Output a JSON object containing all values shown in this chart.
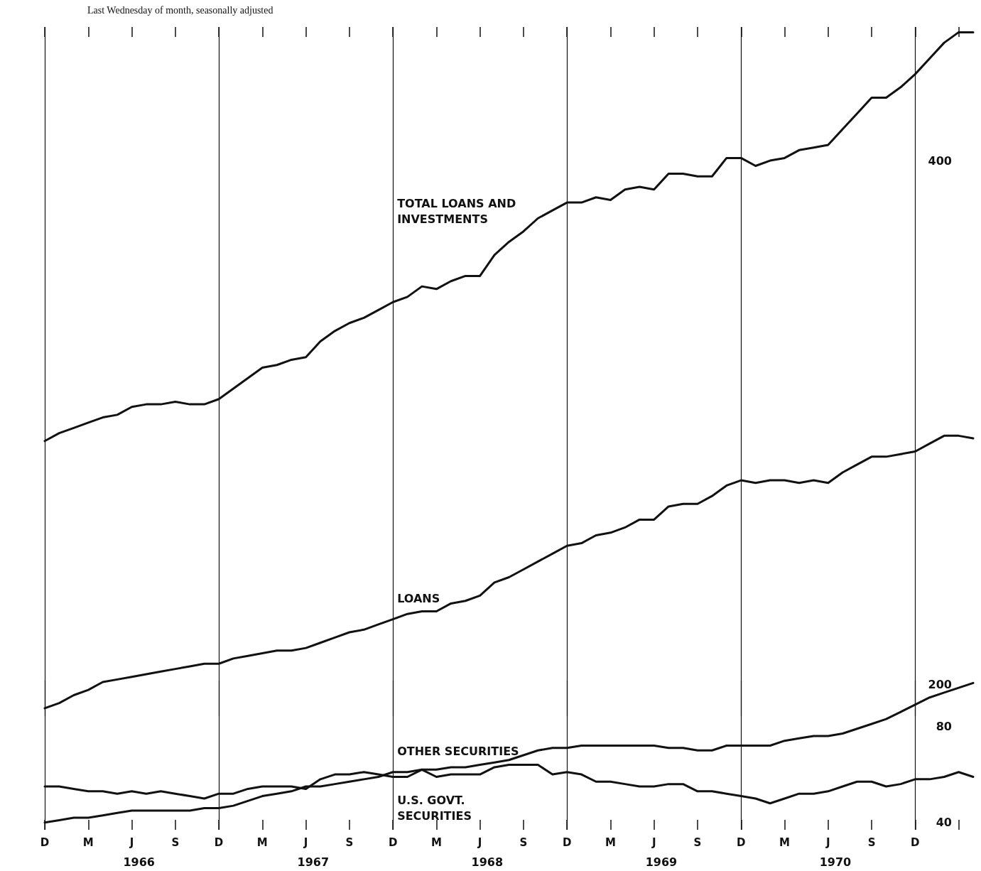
{
  "chart_data": [
    {
      "type": "line",
      "subtitle": "Last Wednesday of month, seasonally adjusted",
      "categories": [
        null,
        null,
        null,
        null,
        null,
        null,
        null,
        null,
        null,
        null,
        null,
        null,
        null,
        null,
        null,
        null,
        null,
        null,
        null,
        null,
        null,
        null,
        null,
        null,
        null,
        null,
        null,
        null,
        null,
        null,
        null,
        null,
        null,
        null,
        null,
        null,
        null,
        null,
        null,
        null,
        null,
        null,
        null,
        null,
        null,
        null,
        null,
        null,
        null,
        null,
        null,
        null,
        null,
        null,
        null,
        null,
        null,
        null,
        null,
        null,
        null,
        null,
        null,
        null,
        null
      ],
      "series": [
        {
          "name": "TOTAL LOANS AND INVESTMENTS",
          "color": "#111111",
          "values": [
            293,
            296,
            298,
            300,
            302,
            303,
            306,
            307,
            307,
            308,
            307,
            307,
            309,
            313,
            317,
            321,
            322,
            324,
            325,
            331,
            335,
            338,
            340,
            343,
            346,
            348,
            352,
            351,
            354,
            356,
            356,
            364,
            369,
            373,
            378,
            381,
            384,
            384,
            386,
            385,
            389,
            390,
            389,
            395,
            395,
            394,
            394,
            401,
            401,
            398,
            400,
            401,
            404,
            405,
            406,
            412,
            418,
            424,
            424,
            428,
            433,
            439,
            445,
            449,
            449
          ]
        },
        {
          "name": "LOANS",
          "color": "#111111",
          "values": [
            191,
            193,
            196,
            198,
            201,
            202,
            203,
            204,
            205,
            206,
            207,
            208,
            208,
            210,
            211,
            212,
            213,
            213,
            214,
            216,
            218,
            220,
            221,
            223,
            225,
            227,
            228,
            228,
            231,
            232,
            234,
            239,
            241,
            244,
            247,
            250,
            253,
            254,
            257,
            258,
            260,
            263,
            263,
            268,
            269,
            269,
            272,
            276,
            278,
            277,
            278,
            278,
            277,
            278,
            277,
            281,
            284,
            287,
            287,
            288,
            289,
            292,
            295,
            295,
            294
          ]
        }
      ],
      "ylim": [
        188,
        451
      ],
      "yticks": [
        200,
        400
      ],
      "tick_labels": "y",
      "grid": "x"
    },
    {
      "type": "line",
      "categories": [
        "D",
        null,
        null,
        "M",
        null,
        null,
        "J",
        null,
        null,
        "S",
        null,
        null,
        "D",
        null,
        null,
        "M",
        null,
        null,
        "J",
        null,
        null,
        "S",
        null,
        null,
        "D",
        null,
        null,
        "M",
        null,
        null,
        "J",
        null,
        null,
        "S",
        null,
        null,
        "D",
        null,
        null,
        "M",
        null,
        null,
        "J",
        null,
        null,
        "S",
        null,
        null,
        "D",
        null,
        null,
        "M",
        null,
        null,
        "J",
        null,
        null,
        "S",
        null,
        null,
        "D",
        null,
        null,
        null,
        null
      ],
      "series": [
        {
          "name": "OTHER SECURITIES",
          "color": "#111111",
          "values": [
            40,
            41,
            42,
            42,
            43,
            44,
            45,
            45,
            45,
            45,
            45,
            46,
            46,
            47,
            49,
            51,
            52,
            53,
            55,
            55,
            56,
            57,
            58,
            59,
            61,
            61,
            62,
            62,
            63,
            63,
            64,
            65,
            66,
            68,
            70,
            71,
            71,
            72,
            72,
            72,
            72,
            72,
            72,
            71,
            71,
            70,
            70,
            72,
            72,
            72,
            72,
            74,
            75,
            76,
            76,
            77,
            79,
            81,
            83,
            86,
            89,
            92,
            94,
            96,
            98
          ]
        },
        {
          "name": "U.S. GOVT. SECURITIES",
          "color": "#111111",
          "values": [
            55,
            55,
            54,
            53,
            53,
            52,
            53,
            52,
            53,
            52,
            51,
            50,
            52,
            52,
            54,
            55,
            55,
            55,
            54,
            58,
            60,
            60,
            61,
            60,
            59,
            59,
            62,
            59,
            60,
            60,
            60,
            63,
            64,
            64,
            64,
            60,
            61,
            60,
            57,
            57,
            56,
            55,
            55,
            56,
            56,
            53,
            53,
            52,
            51,
            50,
            48,
            50,
            52,
            52,
            53,
            55,
            57,
            57,
            55,
            56,
            58,
            58,
            59,
            61,
            59
          ]
        }
      ],
      "ylim": [
        37,
        99
      ],
      "yticks": [
        40,
        80
      ],
      "grid": "x",
      "annotations": [
        "1966",
        "1967",
        "1968",
        "1969",
        "1970"
      ]
    }
  ]
}
